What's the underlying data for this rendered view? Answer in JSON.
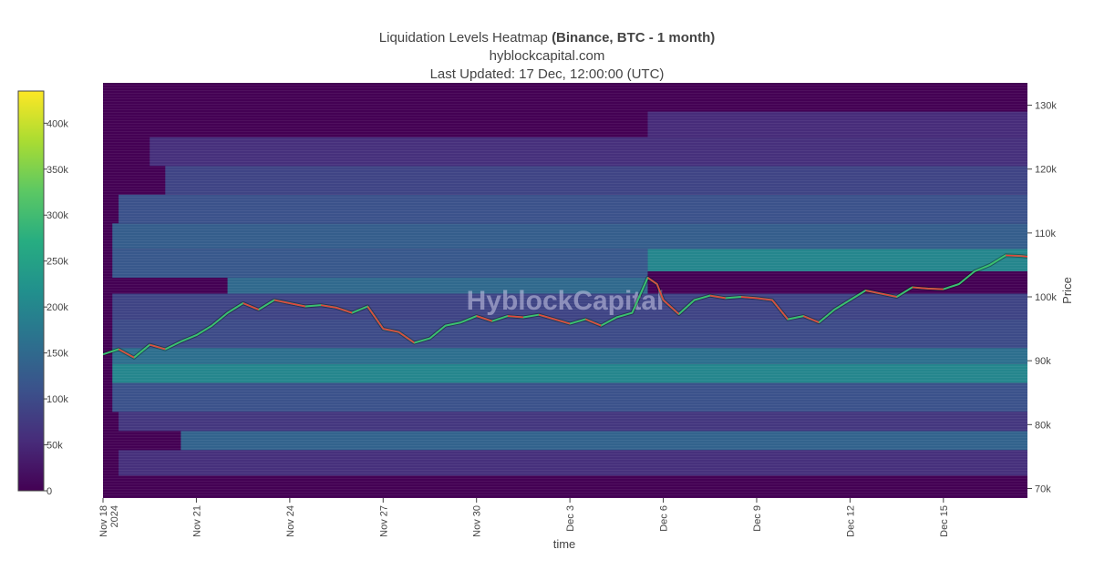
{
  "chart_data": {
    "type": "heatmap",
    "title": {
      "line1_main": "Liquidation Levels Heatmap ",
      "line1_bold": "(Binance, BTC - 1 month)",
      "line2": "hyblockcapital.com",
      "line3": "Last Updated: 17 Dec, 12:00:00 (UTC)"
    },
    "watermark": "HyblockCapital",
    "xlabel": "time",
    "ylabel": "Price",
    "x_domain_days": [
      0,
      29.7
    ],
    "x_ticks": [
      {
        "label": "Nov 18",
        "label2": "2024",
        "day": 0
      },
      {
        "label": "Nov 21",
        "day": 3
      },
      {
        "label": "Nov 24",
        "day": 6
      },
      {
        "label": "Nov 27",
        "day": 9
      },
      {
        "label": "Nov 30",
        "day": 12
      },
      {
        "label": "Dec 3",
        "day": 15
      },
      {
        "label": "Dec 6",
        "day": 18
      },
      {
        "label": "Dec 9",
        "day": 21
      },
      {
        "label": "Dec 12",
        "day": 24
      },
      {
        "label": "Dec 15",
        "day": 27
      }
    ],
    "y_range": [
      68500,
      133500
    ],
    "y_ticks": [
      {
        "label": "70k",
        "value": 70000
      },
      {
        "label": "80k",
        "value": 80000
      },
      {
        "label": "90k",
        "value": 90000
      },
      {
        "label": "100k",
        "value": 100000
      },
      {
        "label": "110k",
        "value": 110000
      },
      {
        "label": "120k",
        "value": 120000
      },
      {
        "label": "130k",
        "value": 130000
      }
    ],
    "colorscale": {
      "min": 0,
      "max": 435000,
      "stops": [
        "#440154",
        "#472c7a",
        "#3b518b",
        "#2c718e",
        "#21908d",
        "#27ad81",
        "#5cc863",
        "#aadc32",
        "#fde725"
      ],
      "ticks": [
        {
          "label": "0",
          "value": 0
        },
        {
          "label": "50k",
          "value": 50000
        },
        {
          "label": "100k",
          "value": 100000
        },
        {
          "label": "150k",
          "value": 150000
        },
        {
          "label": "200k",
          "value": 200000
        },
        {
          "label": "250k",
          "value": 250000
        },
        {
          "label": "300k",
          "value": 300000
        },
        {
          "label": "350k",
          "value": 350000
        },
        {
          "label": "400k",
          "value": 400000
        }
      ]
    },
    "liquidation_bands": [
      {
        "day_start": 1.5,
        "day_end": 29.7,
        "price_low": 120500,
        "price_high": 125000,
        "intensity": 60000
      },
      {
        "day_start": 17.5,
        "day_end": 29.7,
        "price_low": 125000,
        "price_high": 129000,
        "intensity": 55000
      },
      {
        "day_start": 2.0,
        "day_end": 29.7,
        "price_low": 116000,
        "price_high": 120500,
        "intensity": 90000
      },
      {
        "day_start": 0.5,
        "day_end": 29.7,
        "price_low": 111500,
        "price_high": 116000,
        "intensity": 110000
      },
      {
        "day_start": 0.3,
        "day_end": 29.7,
        "price_low": 107500,
        "price_high": 111500,
        "intensity": 130000
      },
      {
        "day_start": 17.5,
        "day_end": 29.7,
        "price_low": 104000,
        "price_high": 107500,
        "intensity": 200000
      },
      {
        "day_start": 0.3,
        "day_end": 17.5,
        "price_low": 103000,
        "price_high": 107500,
        "intensity": 120000
      },
      {
        "day_start": 4.0,
        "day_end": 17.5,
        "price_low": 100500,
        "price_high": 103000,
        "intensity": 150000
      },
      {
        "day_start": 0.3,
        "day_end": 29.7,
        "price_low": 96500,
        "price_high": 100500,
        "intensity": 90000
      },
      {
        "day_start": 0.3,
        "day_end": 29.7,
        "price_low": 92000,
        "price_high": 96500,
        "intensity": 100000
      },
      {
        "day_start": 0.3,
        "day_end": 29.7,
        "price_low": 89500,
        "price_high": 92000,
        "intensity": 160000
      },
      {
        "day_start": 0.3,
        "day_end": 29.7,
        "price_low": 86500,
        "price_high": 89500,
        "intensity": 200000
      },
      {
        "day_start": 0.3,
        "day_end": 29.7,
        "price_low": 82000,
        "price_high": 86500,
        "intensity": 110000
      },
      {
        "day_start": 0.5,
        "day_end": 29.7,
        "price_low": 79000,
        "price_high": 82000,
        "intensity": 70000
      },
      {
        "day_start": 2.5,
        "day_end": 29.7,
        "price_low": 76000,
        "price_high": 79000,
        "intensity": 140000
      },
      {
        "day_start": 0.5,
        "day_end": 29.7,
        "price_low": 72000,
        "price_high": 76000,
        "intensity": 60000
      }
    ],
    "price_series": [
      [
        0,
        91000
      ],
      [
        0.5,
        91800
      ],
      [
        1.0,
        90500
      ],
      [
        1.5,
        92500
      ],
      [
        2.0,
        91800
      ],
      [
        2.5,
        93000
      ],
      [
        3.0,
        94000
      ],
      [
        3.5,
        95500
      ],
      [
        4.0,
        97500
      ],
      [
        4.5,
        99000
      ],
      [
        5.0,
        98000
      ],
      [
        5.5,
        99500
      ],
      [
        6.0,
        99000
      ],
      [
        6.5,
        98500
      ],
      [
        7.0,
        98700
      ],
      [
        7.5,
        98300
      ],
      [
        8.0,
        97500
      ],
      [
        8.5,
        98500
      ],
      [
        9.0,
        95000
      ],
      [
        9.5,
        94500
      ],
      [
        10.0,
        92800
      ],
      [
        10.5,
        93500
      ],
      [
        11.0,
        95500
      ],
      [
        11.5,
        96000
      ],
      [
        12.0,
        97000
      ],
      [
        12.5,
        96200
      ],
      [
        13.0,
        97000
      ],
      [
        13.5,
        96800
      ],
      [
        14.0,
        97200
      ],
      [
        14.5,
        96500
      ],
      [
        15.0,
        95800
      ],
      [
        15.5,
        96500
      ],
      [
        16.0,
        95500
      ],
      [
        16.5,
        96800
      ],
      [
        17.0,
        97500
      ],
      [
        17.5,
        103000
      ],
      [
        17.8,
        102000
      ],
      [
        18.0,
        99500
      ],
      [
        18.5,
        97300
      ],
      [
        19.0,
        99500
      ],
      [
        19.5,
        100200
      ],
      [
        20.0,
        99800
      ],
      [
        20.5,
        100000
      ],
      [
        21.0,
        99800
      ],
      [
        21.5,
        99500
      ],
      [
        22.0,
        96500
      ],
      [
        22.5,
        97000
      ],
      [
        23.0,
        96000
      ],
      [
        23.5,
        98000
      ],
      [
        24.0,
        99500
      ],
      [
        24.5,
        101000
      ],
      [
        25.0,
        100500
      ],
      [
        25.5,
        100000
      ],
      [
        26.0,
        101500
      ],
      [
        26.5,
        101300
      ],
      [
        27.0,
        101200
      ],
      [
        27.5,
        102000
      ],
      [
        28.0,
        104000
      ],
      [
        28.5,
        105000
      ],
      [
        29.0,
        106500
      ],
      [
        29.5,
        106400
      ],
      [
        29.7,
        106300
      ]
    ],
    "price_series_color": "#3ac070"
  }
}
